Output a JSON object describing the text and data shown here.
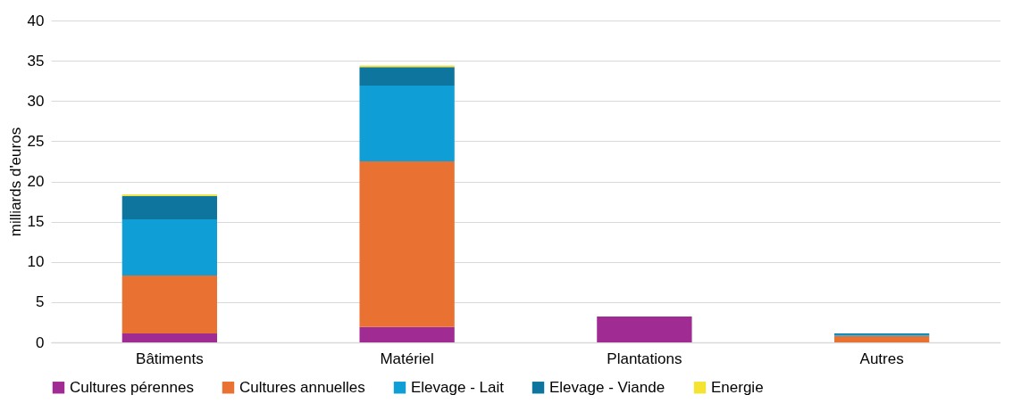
{
  "chart_data": {
    "type": "bar",
    "ylabel": "milliards d'euros",
    "categories": [
      "Bâtiments",
      "Matériel",
      "Plantations",
      "Autres"
    ],
    "stacked": true,
    "ylim": [
      0,
      40
    ],
    "yticks": [
      0,
      5,
      10,
      15,
      20,
      25,
      30,
      35,
      40
    ],
    "grid": "y",
    "legend": "bottom",
    "series": [
      {
        "name": "Cultures pérennes",
        "color": "#a02b93",
        "values": [
          1.1,
          1.9,
          3.2,
          0
        ]
      },
      {
        "name": "Cultures annuelles",
        "color": "#e97132",
        "values": [
          7.2,
          20.6,
          0,
          0.8
        ]
      },
      {
        "name": "Elevage - Lait",
        "color": "#0f9ed5",
        "values": [
          7.0,
          9.4,
          0,
          0.2
        ]
      },
      {
        "name": "Elevage - Viande",
        "color": "#0e759f",
        "values": [
          2.9,
          2.3,
          0,
          0.1
        ]
      },
      {
        "name": "Energie",
        "color": "#f4e431",
        "values": [
          0.2,
          0.2,
          0,
          0
        ]
      }
    ]
  }
}
